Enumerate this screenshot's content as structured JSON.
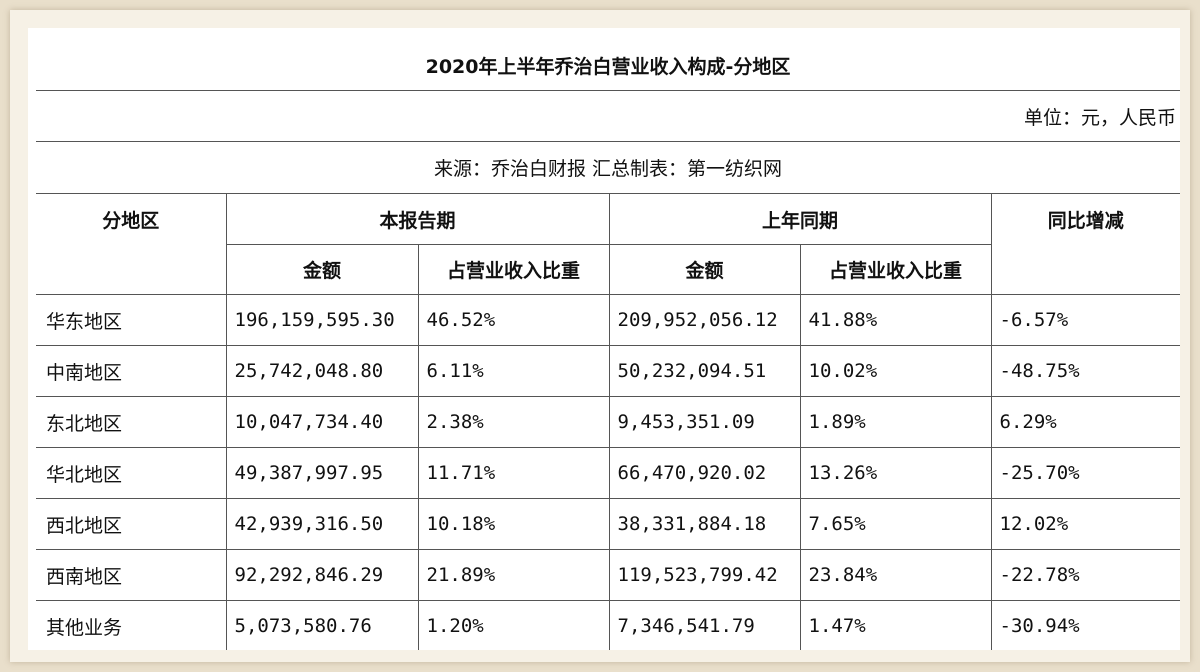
{
  "table": {
    "title": "2020年上半年乔治白营业收入构成-分地区",
    "unit": "单位：元，人民币",
    "source": "来源：乔治白财报   汇总制表：第一纺织网",
    "headers": {
      "region": "分地区",
      "current_period": "本报告期",
      "prior_period": "上年同期",
      "yoy": "同比增减",
      "amount": "金额",
      "share": "占营业收入比重"
    },
    "rows": [
      {
        "region": "华东地区",
        "cur_amount": "196,159,595.30",
        "cur_share": "46.52%",
        "prev_amount": "209,952,056.12",
        "prev_share": "41.88%",
        "yoy": "-6.57%"
      },
      {
        "region": "中南地区",
        "cur_amount": "25,742,048.80",
        "cur_share": "6.11%",
        "prev_amount": "50,232,094.51",
        "prev_share": "10.02%",
        "yoy": "-48.75%"
      },
      {
        "region": "东北地区",
        "cur_amount": "10,047,734.40",
        "cur_share": "2.38%",
        "prev_amount": "9,453,351.09",
        "prev_share": "1.89%",
        "yoy": "6.29%"
      },
      {
        "region": "华北地区",
        "cur_amount": "49,387,997.95",
        "cur_share": "11.71%",
        "prev_amount": "66,470,920.02",
        "prev_share": "13.26%",
        "yoy": "-25.70%"
      },
      {
        "region": "西北地区",
        "cur_amount": "42,939,316.50",
        "cur_share": "10.18%",
        "prev_amount": "38,331,884.18",
        "prev_share": "7.65%",
        "yoy": "12.02%"
      },
      {
        "region": "西南地区",
        "cur_amount": "92,292,846.29",
        "cur_share": "21.89%",
        "prev_amount": "119,523,799.42",
        "prev_share": "23.84%",
        "yoy": "-22.78%"
      },
      {
        "region": "其他业务",
        "cur_amount": "5,073,580.76",
        "cur_share": "1.20%",
        "prev_amount": "7,346,541.79",
        "prev_share": "1.47%",
        "yoy": "-30.94%"
      }
    ]
  }
}
